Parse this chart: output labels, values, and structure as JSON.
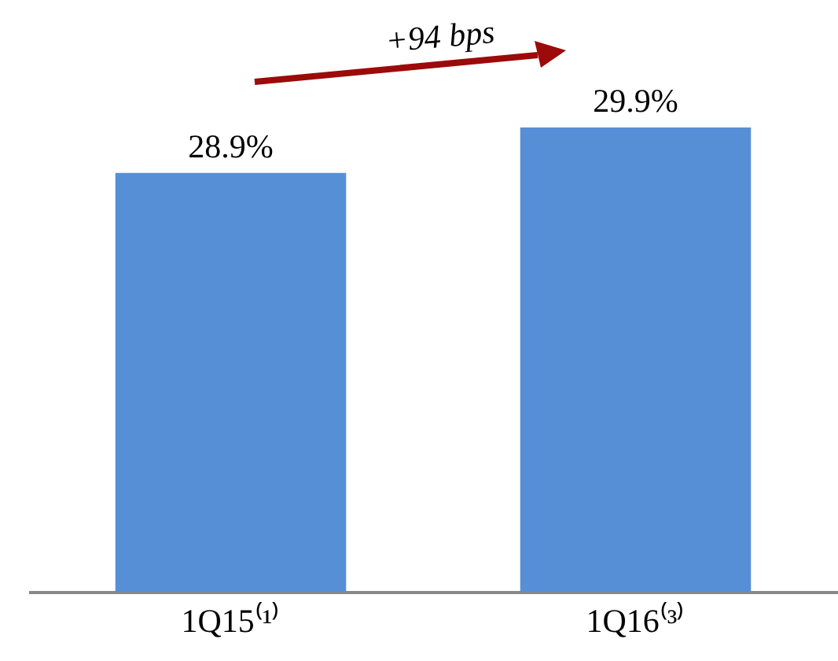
{
  "chart_data": {
    "type": "bar",
    "categories": [
      "1Q15⁽¹⁾",
      "1Q16⁽³⁾"
    ],
    "values": [
      28.9,
      29.9
    ],
    "value_labels": [
      "28.9%",
      "29.9%"
    ],
    "ylim": [
      19.7,
      32.7
    ],
    "color": "#568fd6",
    "tick_labels": "x",
    "annotations": [
      "+94 bps"
    ]
  }
}
